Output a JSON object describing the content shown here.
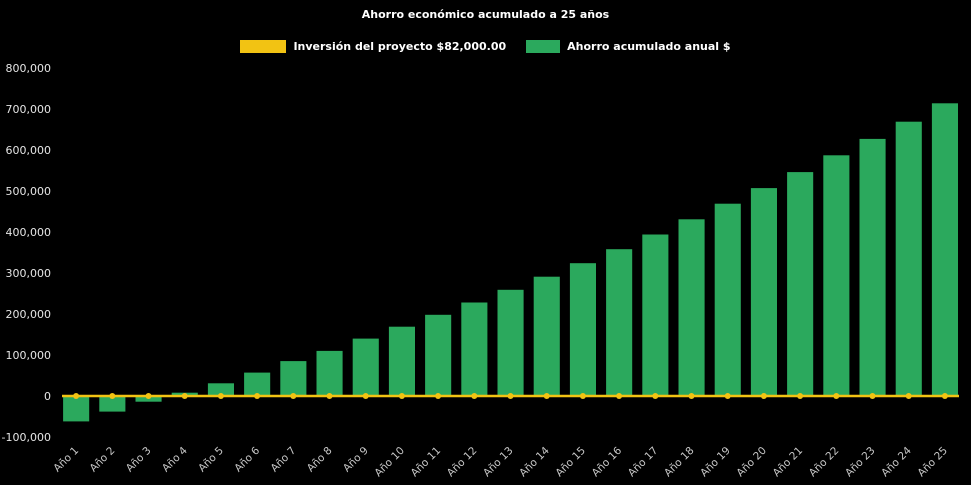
{
  "title": "Ahorro económico acumulado a 25 años",
  "legend": [
    {
      "label": "Inversión del proyecto $82,000.00",
      "color": "#f2c313",
      "type": "line"
    },
    {
      "label": "Ahorro acumulado anual $",
      "color": "#2ba95d",
      "type": "bar"
    }
  ],
  "colors": {
    "background": "#000000",
    "bar": "#2ba95d",
    "line": "#f2c313",
    "title_text": "#ffffff",
    "axis_text": "#c8c8c8",
    "ytick_text": "#e5e5e5"
  },
  "chart_data": {
    "type": "bar",
    "title": "Ahorro económico acumulado a 25 años",
    "xlabel": "",
    "ylabel": "",
    "categories": [
      "Año 1",
      "Año 2",
      "Año 3",
      "Año 4",
      "Año 5",
      "Año 6",
      "Año 7",
      "Año 8",
      "Año 9",
      "Año 10",
      "Año 11",
      "Año 12",
      "Año 13",
      "Año 14",
      "Año 15",
      "Año 16",
      "Año 17",
      "Año 18",
      "Año 19",
      "Año 20",
      "Año 21",
      "Año 22",
      "Año 23",
      "Año 24",
      "Año 25"
    ],
    "series": [
      {
        "name": "Ahorro acumulado anual $",
        "type": "bar",
        "color": "#2ba95d",
        "values": [
          -62000,
          -38000,
          -14000,
          8000,
          31000,
          57000,
          85000,
          110000,
          140000,
          169000,
          198000,
          228000,
          259000,
          291000,
          324000,
          358000,
          394000,
          431000,
          469000,
          507000,
          546000,
          587000,
          627000,
          669000,
          714000
        ]
      },
      {
        "name": "Inversión del proyecto $82,000.00",
        "type": "line",
        "color": "#f2c313",
        "values": [
          0,
          0,
          0,
          0,
          0,
          0,
          0,
          0,
          0,
          0,
          0,
          0,
          0,
          0,
          0,
          0,
          0,
          0,
          0,
          0,
          0,
          0,
          0,
          0,
          0
        ]
      }
    ],
    "ylim": [
      -100000,
      800000
    ],
    "ytick_step": 100000,
    "grid": false,
    "legend_position": "top"
  }
}
